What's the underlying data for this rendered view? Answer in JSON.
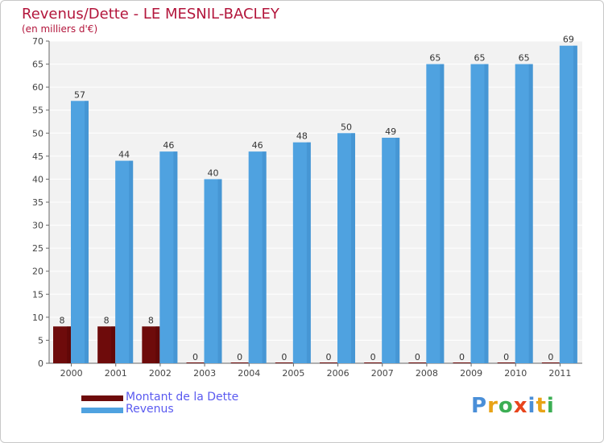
{
  "title": "Revenus/Dette - LE MESNIL-BACLEY",
  "subtitle": "(en milliers d'€)",
  "brand": {
    "letters": [
      "P",
      "r",
      "o",
      "x",
      "i",
      "t",
      "i"
    ],
    "colors": [
      "#4a8fd8",
      "#e8a317",
      "#3cae54",
      "#e8451c",
      "#4a8fd8",
      "#e8a317",
      "#3cae54"
    ]
  },
  "chart_data": {
    "type": "bar",
    "title": "Revenus/Dette - LE MESNIL-BACLEY",
    "ylabel": "(en milliers d'€)",
    "xlabel": "",
    "categories": [
      "2000",
      "2001",
      "2002",
      "2003",
      "2004",
      "2005",
      "2006",
      "2007",
      "2008",
      "2009",
      "2010",
      "2011"
    ],
    "series": [
      {
        "name": "Montant de la Dette",
        "color": "#6e0b0b",
        "values": [
          8,
          8,
          8,
          0,
          0,
          0,
          0,
          0,
          0,
          0,
          0,
          0
        ]
      },
      {
        "name": "Revenus",
        "color": "#4fa2e0",
        "values": [
          57,
          44,
          46,
          40,
          46,
          48,
          50,
          49,
          65,
          65,
          65,
          69
        ]
      }
    ],
    "ylim": [
      0,
      70
    ],
    "yticks": [
      0,
      5,
      10,
      15,
      20,
      25,
      30,
      35,
      40,
      45,
      50,
      55,
      60,
      65,
      70
    ],
    "grid": true,
    "legend": "bottom-left"
  }
}
